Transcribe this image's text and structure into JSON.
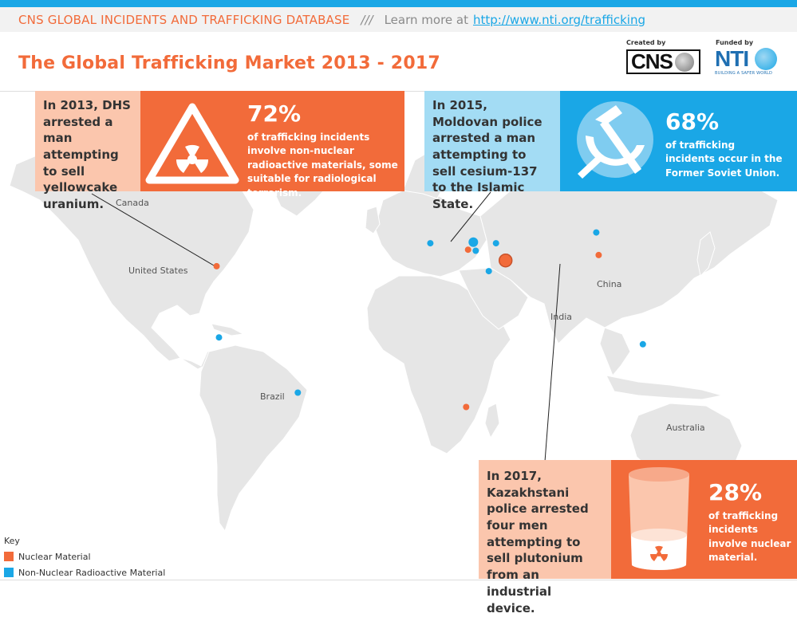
{
  "header": {
    "db_title": "CNS GLOBAL INCIDENTS AND TRAFFICKING DATABASE",
    "separator": "///",
    "learn_more": "Learn more at",
    "link": "http://www.nti.org/trafficking"
  },
  "title": "The Global Trafficking Market 2013 - 2017",
  "logos": {
    "created_by": "Created by",
    "cns_label": "CNS",
    "funded_by": "Funded by",
    "nti_label": "NTI",
    "nti_tagline": "BUILDING A SAFER WORLD"
  },
  "callouts": {
    "us_2013": "In 2013, DHS arrested a man attempting to sell yellowcake uranium.",
    "moldova_2015": "In 2015, Moldovan police arrested a man attempting to sell cesium-137 to the Islamic State.",
    "kazakhstan_2017": "In 2017, Kazakhstani police arrested four men attempting to sell plutonium from an industrial device."
  },
  "stats": {
    "radioactive": {
      "pct": "72%",
      "desc": "of trafficking incidents involve non-nuclear radioactive materials, some suitable for radiological terrorism."
    },
    "fsu": {
      "pct": "68%",
      "desc": "of trafficking incidents occur in the Former Soviet Union."
    },
    "nuclear": {
      "pct": "28%",
      "desc": "of trafficking incidents involve nuclear material."
    }
  },
  "map_labels": {
    "canada": "Canada",
    "united_states": "United States",
    "brazil": "Brazil",
    "china": "China",
    "india": "India",
    "australia": "Australia"
  },
  "key": {
    "title": "Key",
    "nuclear": "Nuclear Material",
    "non_nuclear": "Non-Nuclear Radioactive Material"
  },
  "colors": {
    "nuclear": "#f26b3a",
    "non_nuclear": "#1aa7e6",
    "land": "#e6e6e6",
    "nuclear_light": "#fbc6ad",
    "non_nuclear_light": "#a3dcf4"
  },
  "incidents": [
    {
      "place": "Eastern United States",
      "lon": -76.5,
      "lat": 39.3,
      "type": "nuclear",
      "size": "small"
    },
    {
      "place": "Colombia",
      "lon": -75.5,
      "lat": 6.2,
      "type": "non_nuclear",
      "size": "small"
    },
    {
      "place": "Eastern Brazil",
      "lon": -42.5,
      "lat": -19.5,
      "type": "non_nuclear",
      "size": "small"
    },
    {
      "place": "South Africa",
      "lon": 28.0,
      "lat": -26.2,
      "type": "nuclear",
      "size": "small"
    },
    {
      "place": "Central Europe",
      "lon": 13.0,
      "lat": 50.0,
      "type": "non_nuclear",
      "size": "small"
    },
    {
      "place": "Moldova",
      "lon": 28.8,
      "lat": 47.0,
      "type": "nuclear",
      "size": "small"
    },
    {
      "place": "Ukraine",
      "lon": 31.0,
      "lat": 50.5,
      "type": "non_nuclear",
      "size": "medium"
    },
    {
      "place": "Ukraine (south)",
      "lon": 32.0,
      "lat": 46.5,
      "type": "non_nuclear",
      "size": "small"
    },
    {
      "place": "Western Russia",
      "lon": 40.5,
      "lat": 50.0,
      "type": "non_nuclear",
      "size": "small"
    },
    {
      "place": "Georgia",
      "lon": 44.5,
      "lat": 42.0,
      "type": "nuclear",
      "size": "large"
    },
    {
      "place": "Turkey",
      "lon": 37.5,
      "lat": 37.0,
      "type": "non_nuclear",
      "size": "small"
    },
    {
      "place": "Siberia",
      "lon": 82.5,
      "lat": 55.0,
      "type": "non_nuclear",
      "size": "small"
    },
    {
      "place": "Kazakhstan",
      "lon": 83.5,
      "lat": 44.5,
      "type": "nuclear",
      "size": "small"
    },
    {
      "place": "Malaysia",
      "lon": 102.0,
      "lat": 3.0,
      "type": "non_nuclear",
      "size": "small"
    }
  ]
}
